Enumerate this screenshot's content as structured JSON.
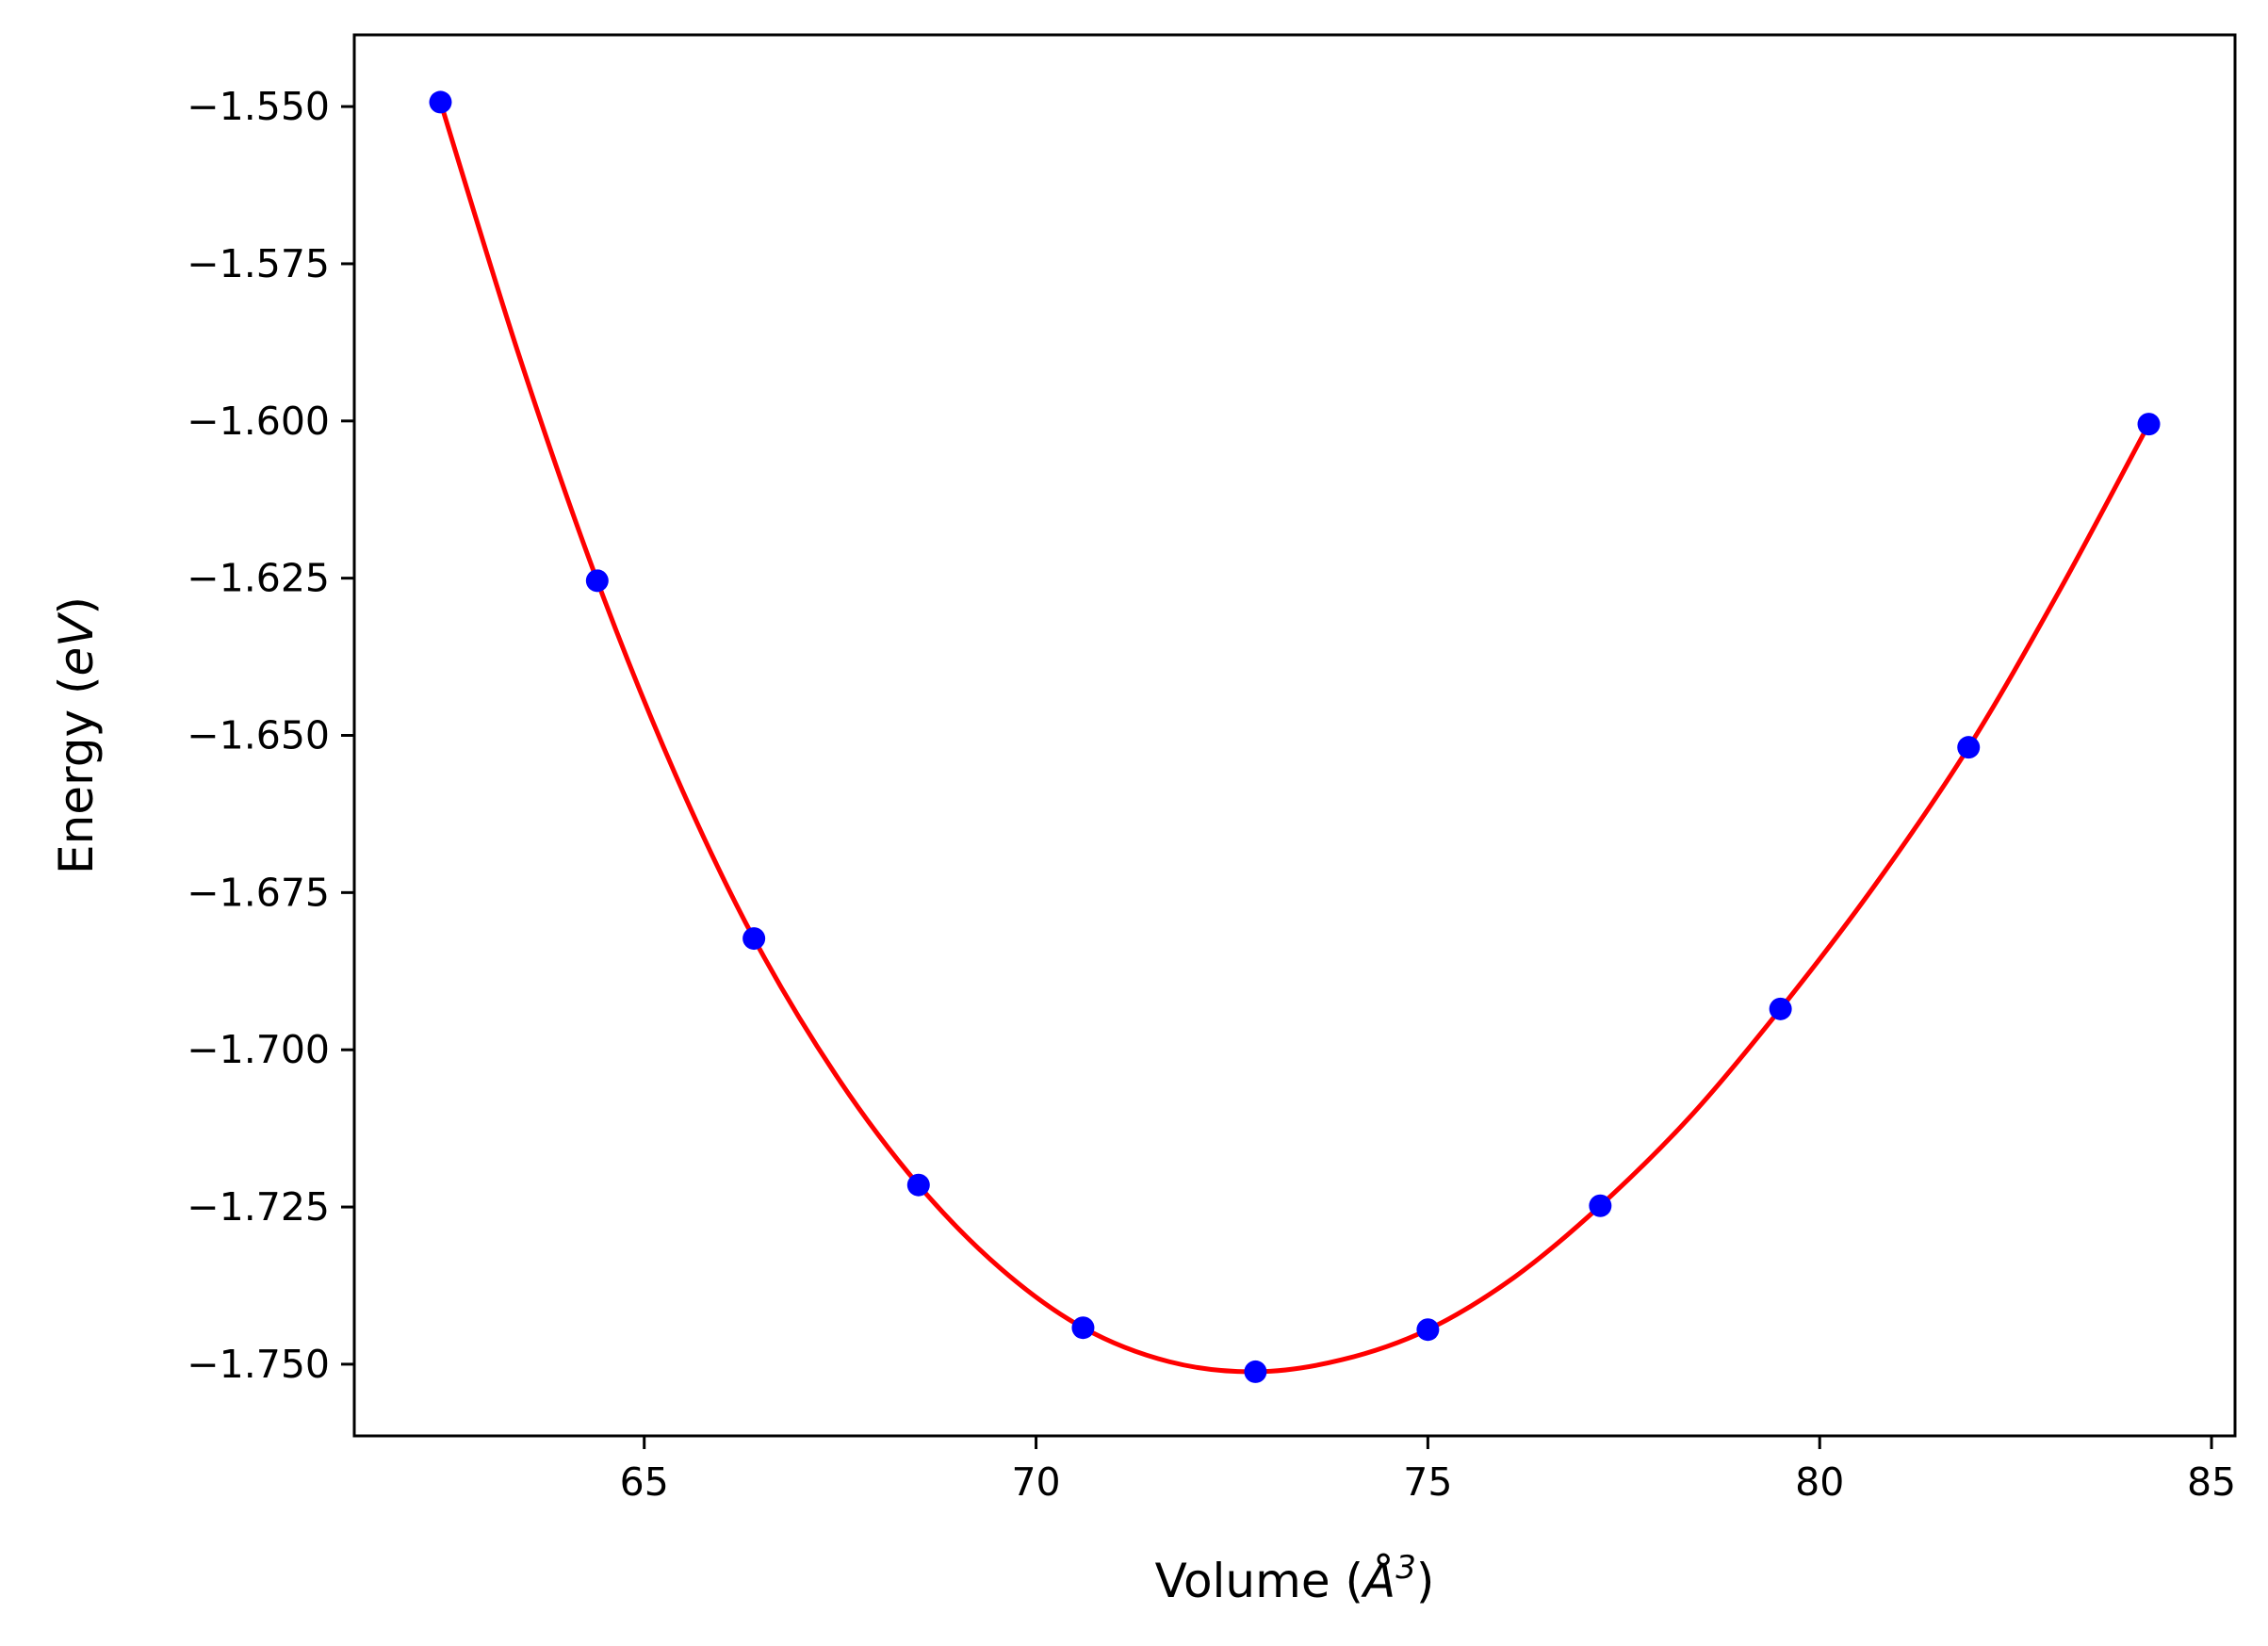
{
  "chart_data": {
    "type": "scatter",
    "xlabel": "Volume ($\\AA^3$)",
    "xlabel_display": {
      "prefix": "Volume (",
      "symbol": "Å",
      "superscript": "3",
      "suffix": ")"
    },
    "ylabel": "Energy ($eV$)",
    "ylabel_display": {
      "prefix": "Energy (",
      "symbol": "eV",
      "suffix": ")"
    },
    "xlim": [
      61.3,
      85.3
    ],
    "ylim": [
      -1.7614,
      -1.5386
    ],
    "x_ticks": [
      65,
      70,
      75,
      80,
      85
    ],
    "x_tick_labels": [
      "65",
      "70",
      "75",
      "80",
      "85"
    ],
    "y_ticks": [
      -1.55,
      -1.575,
      -1.6,
      -1.625,
      -1.65,
      -1.675,
      -1.7,
      -1.725,
      -1.75
    ],
    "y_tick_labels": [
      "−1.550",
      "−1.575",
      "−1.600",
      "−1.625",
      "−1.650",
      "−1.675",
      "−1.700",
      "−1.725",
      "−1.750"
    ],
    "grid": false,
    "series": [
      {
        "style": "markers",
        "color": "#0000ff",
        "x": [
          62.4,
          64.4,
          66.4,
          68.5,
          70.6,
          72.8,
          75.0,
          77.2,
          79.5,
          81.9,
          84.2
        ],
        "y": [
          -1.5493,
          -1.6254,
          -1.6823,
          -1.7215,
          -1.7442,
          -1.7512,
          -1.7445,
          -1.7248,
          -1.6935,
          -1.6519,
          -1.6005
        ]
      },
      {
        "style": "line",
        "color": "#ff0000",
        "x": [
          62.4,
          63.4,
          64.4,
          65.4,
          66.4,
          67.45,
          68.5,
          69.55,
          70.6,
          71.7,
          72.8,
          73.9,
          75.0,
          76.1,
          77.2,
          78.35,
          79.5,
          80.7,
          81.9,
          83.05,
          84.2
        ],
        "y": [
          -1.5493,
          -1.5895,
          -1.6254,
          -1.6563,
          -1.6823,
          -1.7041,
          -1.7215,
          -1.7348,
          -1.7442,
          -1.7496,
          -1.7512,
          -1.7493,
          -1.7445,
          -1.7362,
          -1.7248,
          -1.7106,
          -1.6935,
          -1.6739,
          -1.6519,
          -1.6272,
          -1.6005
        ]
      }
    ]
  }
}
